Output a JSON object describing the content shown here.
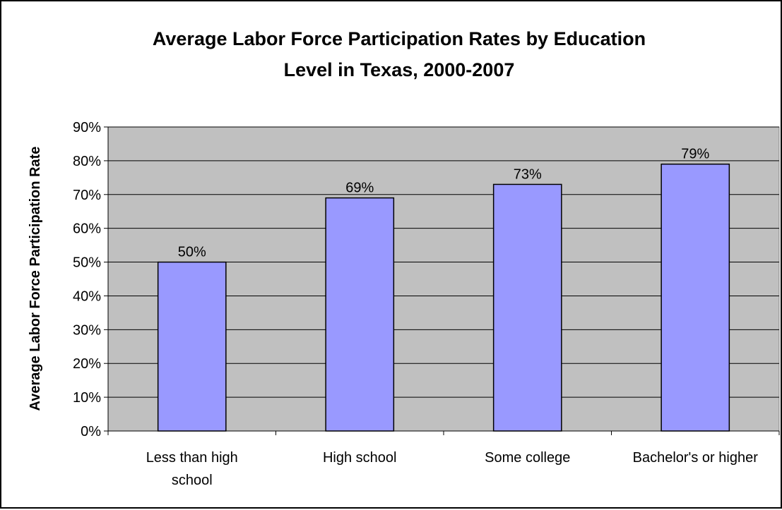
{
  "chart_data": {
    "type": "bar",
    "title_lines": [
      "Average Labor Force Participation Rates by Education",
      "Level in Texas, 2000-2007"
    ],
    "ylabel": "Average Labor Force Participation Rate",
    "xlabel": "",
    "categories": [
      [
        "Less than high",
        "school"
      ],
      [
        "High school"
      ],
      [
        "Some college"
      ],
      [
        "Bachelor's or higher"
      ]
    ],
    "values": [
      50,
      69,
      73,
      79
    ],
    "value_labels": [
      "50%",
      "69%",
      "73%",
      "79%"
    ],
    "ylim": [
      0,
      90
    ],
    "yticks": [
      0,
      10,
      20,
      30,
      40,
      50,
      60,
      70,
      80,
      90
    ],
    "ytick_labels": [
      "0%",
      "10%",
      "20%",
      "30%",
      "40%",
      "50%",
      "60%",
      "70%",
      "80%",
      "90%"
    ],
    "grid": true,
    "legend": "none",
    "colors": {
      "bar_fill": "#9999ff",
      "plot_background": "#c0c0c0",
      "gridline": "#000000",
      "bar_stroke": "#000000"
    }
  }
}
